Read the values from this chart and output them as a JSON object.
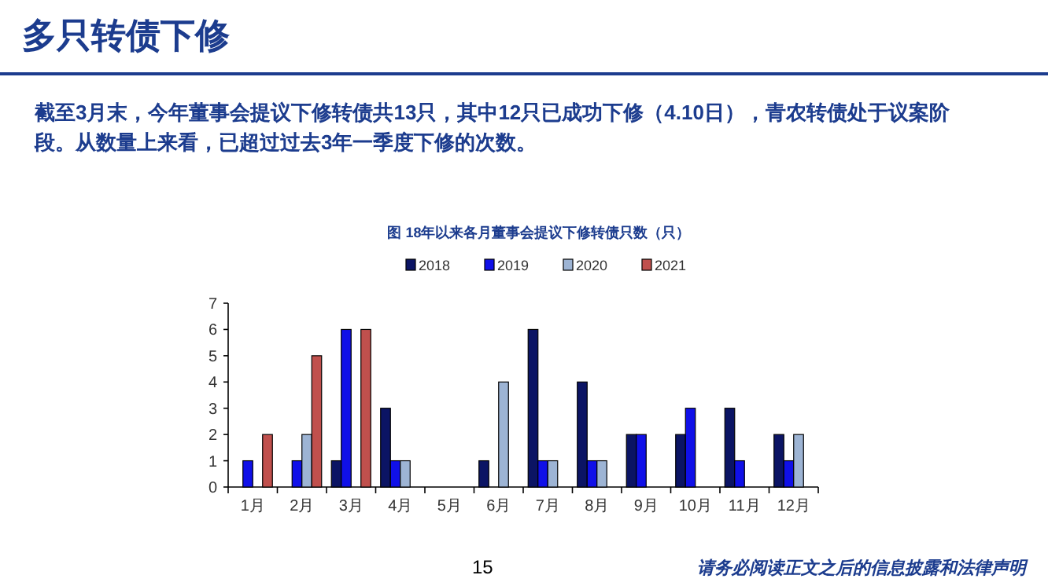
{
  "chart_data": {
    "type": "bar",
    "title": "多只转债下修",
    "subtitle": "截至3月末，今年董事会提议下修转债共13只，其中12只已成功下修（4.10日），青农转债处于议案阶段。从数量上来看，已超过过去3年一季度下修的次数。",
    "xlabel": "图  18年以来各月董事会提议下修转债只数（只）",
    "categories": [
      "1月",
      "2月",
      "3月",
      "4月",
      "5月",
      "6月",
      "7月",
      "8月",
      "9月",
      "10月",
      "11月",
      "12月"
    ],
    "series": [
      {
        "name": "2018",
        "color": "#0b1464",
        "values": [
          null,
          null,
          1,
          3,
          null,
          1,
          6,
          4,
          2,
          2,
          3,
          2
        ]
      },
      {
        "name": "2019",
        "color": "#1010e8",
        "values": [
          1,
          1,
          6,
          1,
          null,
          null,
          1,
          1,
          2,
          3,
          1,
          1
        ]
      },
      {
        "name": "2020",
        "color": "#9db4d4",
        "values": [
          null,
          2,
          null,
          1,
          null,
          4,
          1,
          1,
          null,
          null,
          null,
          2
        ]
      },
      {
        "name": "2021",
        "color": "#c0504d",
        "values": [
          2,
          5,
          6,
          null,
          null,
          null,
          null,
          null,
          null,
          null,
          null,
          null
        ]
      }
    ],
    "ylim": [
      0,
      7
    ],
    "yticks": [
      0,
      1,
      2,
      3,
      4,
      5,
      6,
      7
    ],
    "legend": "top",
    "grid": false,
    "annotations": [
      "15",
      "请务必阅读正文之后的信息披露和法律声明"
    ]
  }
}
